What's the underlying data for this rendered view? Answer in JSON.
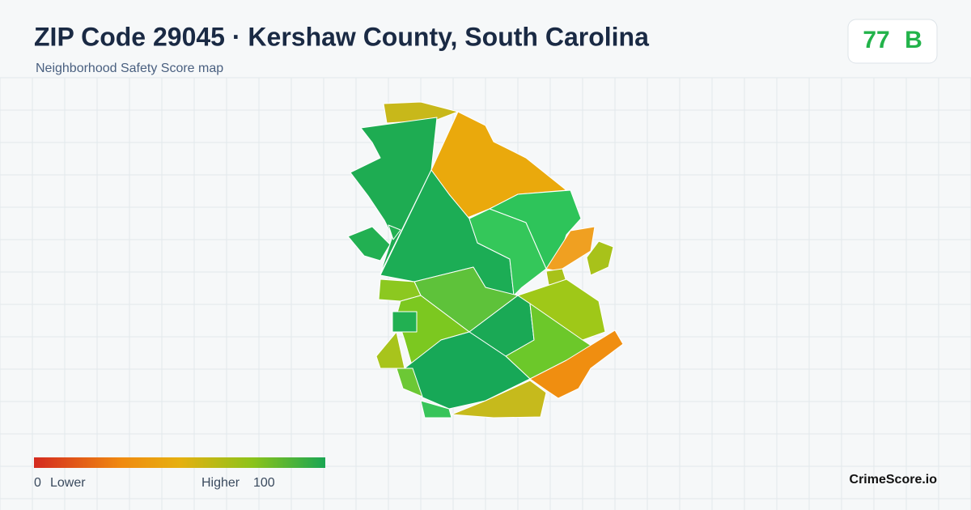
{
  "header": {
    "title": "ZIP Code 29045 · Kershaw County, South Carolina",
    "subtitle": "Neighborhood Safety Score map"
  },
  "score": {
    "value": "77",
    "grade": "B"
  },
  "legend": {
    "min": "0",
    "min_label": "Lower",
    "max_label": "Higher",
    "max": "100"
  },
  "brand": "CrimeScore.io"
}
